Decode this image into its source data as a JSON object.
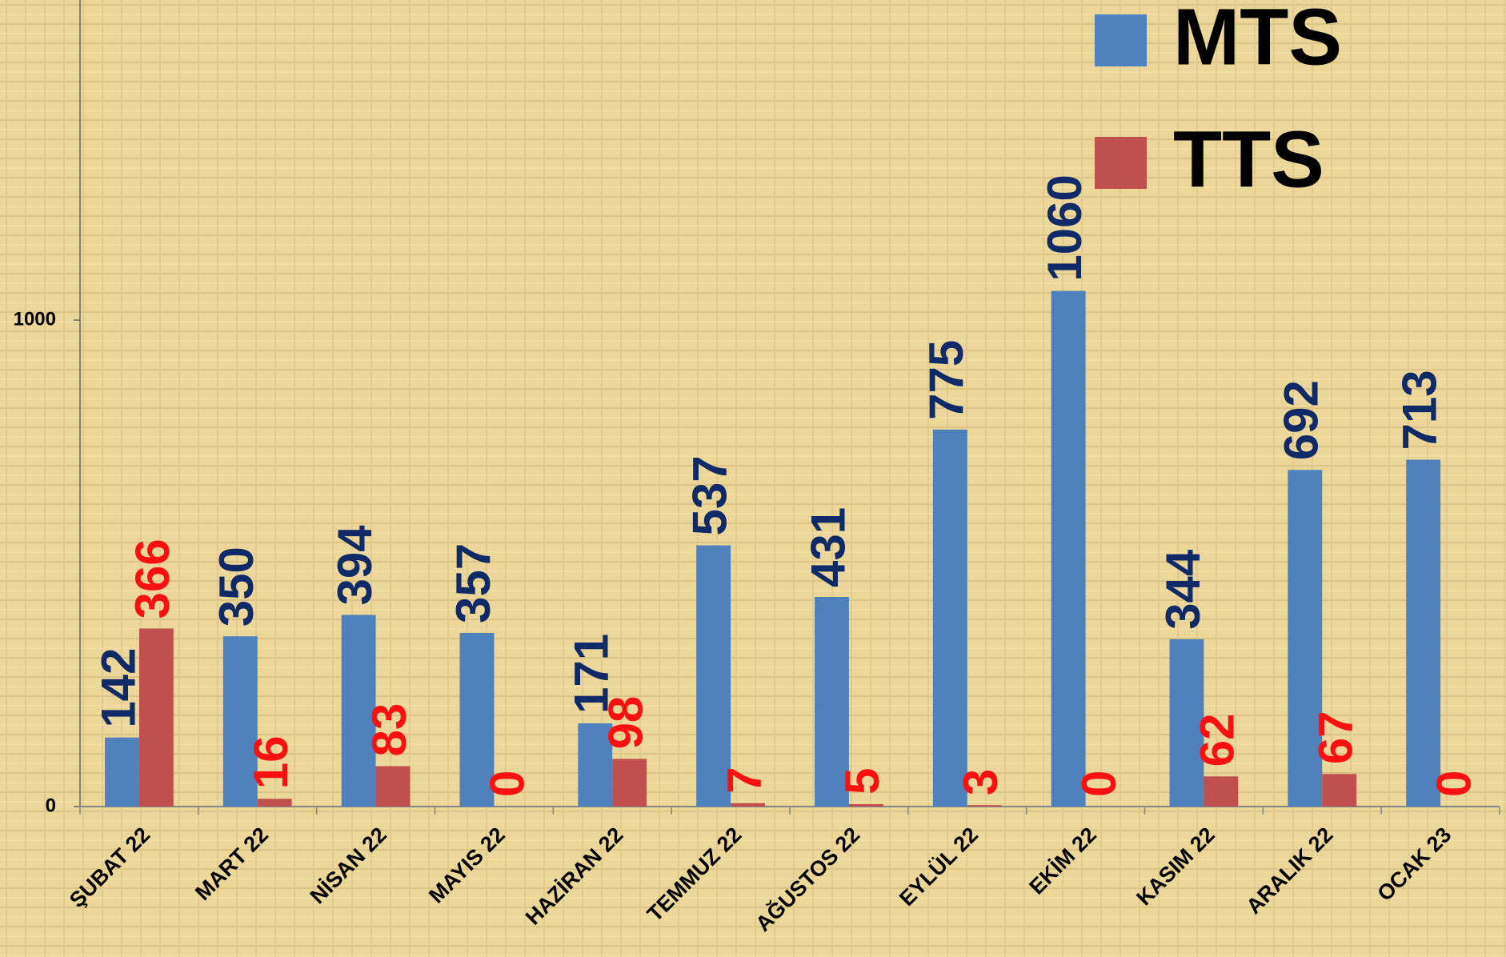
{
  "chart_data": {
    "type": "bar",
    "categories": [
      "ŞUBAT 22",
      "MART 22",
      "NİSAN 22",
      "MAYIS 22",
      "HAZİRAN 22",
      "TEMMUZ 22",
      "AĞUSTOS 22",
      "EYLÜL 22",
      "EKİM 22",
      "KASIM 22",
      "ARALIK 22",
      "OCAK 23"
    ],
    "series": [
      {
        "name": "MTS",
        "color": "#4f81bd",
        "label_color": "#0f2a66",
        "values": [
          142,
          350,
          394,
          357,
          171,
          537,
          431,
          775,
          1060,
          344,
          692,
          713
        ]
      },
      {
        "name": "TTS",
        "color": "#c0504d",
        "label_color": "#ff1010",
        "values": [
          366,
          16,
          83,
          0,
          98,
          7,
          5,
          3,
          0,
          62,
          67,
          0
        ]
      }
    ],
    "ylim": [
      0,
      1658
    ],
    "yticks": [
      0,
      1000
    ],
    "legend": "top-right"
  }
}
